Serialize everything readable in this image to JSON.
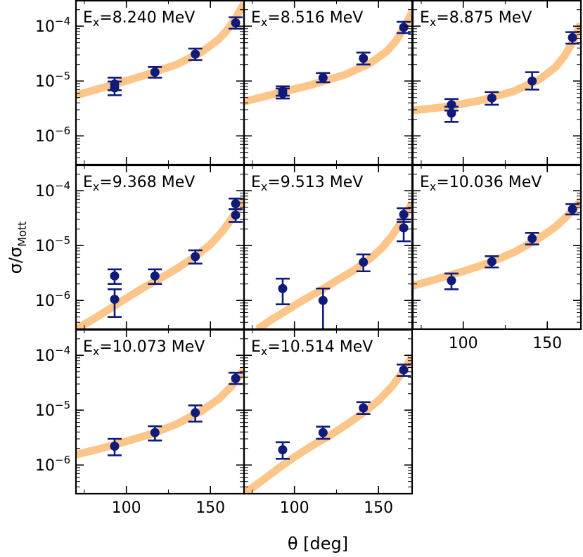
{
  "chart_data": {
    "type": "scatter",
    "xlabel": "θ [deg]",
    "ylabel": "σ/σ_Mott",
    "ylabel_main": "σ/σ",
    "ylabel_sub": "Mott",
    "xlim": [
      70,
      170
    ],
    "ylim": [
      3e-07,
      0.0003
    ],
    "yscale": "log",
    "xticks": [
      100,
      150
    ],
    "yticks": [
      1e-06,
      1e-05,
      0.0001
    ],
    "ytick_labels": [
      {
        "base": "10",
        "exp": "−6"
      },
      {
        "base": "10",
        "exp": "−5"
      },
      {
        "base": "10",
        "exp": "−4"
      }
    ],
    "panels": [
      {
        "label_base": "E",
        "label_sub": "x",
        "label_rest": "=8.240 MeV",
        "points": [
          {
            "x": 93,
            "y": 7.5e-06,
            "ylo": 5.5e-06,
            "yhi": 9.8e-06
          },
          {
            "x": 93,
            "y": 8.8e-06,
            "ylo": 6.8e-06,
            "yhi": 1.15e-05
          },
          {
            "x": 117,
            "y": 1.45e-05,
            "ylo": 1.15e-05,
            "yhi": 1.8e-05
          },
          {
            "x": 141,
            "y": 3.1e-05,
            "ylo": 2.4e-05,
            "yhi": 3.9e-05
          },
          {
            "x": 165,
            "y": 0.000115,
            "ylo": 9e-05,
            "yhi": 0.000145
          }
        ],
        "curve": [
          [
            70,
            5.5e-06
          ],
          [
            90,
            8.2e-06
          ],
          [
            110,
            1.25e-05
          ],
          [
            130,
            2e-05
          ],
          [
            145,
            3.4e-05
          ],
          [
            155,
            5.8e-05
          ],
          [
            160,
            8.5e-05
          ],
          [
            165,
            0.00014
          ],
          [
            170,
            0.00026
          ]
        ]
      },
      {
        "label_base": "E",
        "label_sub": "x",
        "label_rest": "=8.516 MeV",
        "points": [
          {
            "x": 93,
            "y": 5.9e-06,
            "ylo": 4.8e-06,
            "yhi": 7.3e-06
          },
          {
            "x": 93,
            "y": 6.6e-06,
            "ylo": 5.4e-06,
            "yhi": 8e-06
          },
          {
            "x": 117,
            "y": 1.15e-05,
            "ylo": 9.5e-06,
            "yhi": 1.4e-05
          },
          {
            "x": 141,
            "y": 2.6e-05,
            "ylo": 2e-05,
            "yhi": 3.3e-05
          },
          {
            "x": 165,
            "y": 9.5e-05,
            "ylo": 7.5e-05,
            "yhi": 0.00012
          }
        ],
        "curve": [
          [
            70,
            4.2e-06
          ],
          [
            90,
            6e-06
          ],
          [
            110,
            8.5e-06
          ],
          [
            130,
            1.3e-05
          ],
          [
            145,
            2.1e-05
          ],
          [
            155,
            3.5e-05
          ],
          [
            160,
            5.2e-05
          ],
          [
            165,
            9e-05
          ],
          [
            170,
            0.00018
          ]
        ]
      },
      {
        "label_base": "E",
        "label_sub": "x",
        "label_rest": "=8.875 MeV",
        "points": [
          {
            "x": 93,
            "y": 2.6e-06,
            "ylo": 1.8e-06,
            "yhi": 3.4e-06
          },
          {
            "x": 93,
            "y": 3.7e-06,
            "ylo": 2.9e-06,
            "yhi": 4.7e-06
          },
          {
            "x": 117,
            "y": 4.9e-06,
            "ylo": 3.7e-06,
            "yhi": 6.3e-06
          },
          {
            "x": 141,
            "y": 1e-05,
            "ylo": 7e-06,
            "yhi": 1.45e-05
          },
          {
            "x": 165,
            "y": 6.2e-05,
            "ylo": 4.8e-05,
            "yhi": 7.8e-05
          }
        ],
        "curve": [
          [
            70,
            2.9e-06
          ],
          [
            90,
            3.4e-06
          ],
          [
            110,
            4.4e-06
          ],
          [
            130,
            6.5e-06
          ],
          [
            145,
            1.05e-05
          ],
          [
            155,
            1.8e-05
          ],
          [
            160,
            2.8e-05
          ],
          [
            165,
            5e-05
          ],
          [
            170,
            0.00011
          ]
        ]
      },
      {
        "label_base": "E",
        "label_sub": "x",
        "label_rest": "=9.368 MeV",
        "points": [
          {
            "x": 93,
            "y": 2.8e-06,
            "ylo": 2e-06,
            "yhi": 3.7e-06
          },
          {
            "x": 93,
            "y": 1.05e-06,
            "ylo": 5e-07,
            "yhi": 1.6e-06
          },
          {
            "x": 117,
            "y": 2.8e-06,
            "ylo": 2e-06,
            "yhi": 3.7e-06
          },
          {
            "x": 141,
            "y": 6.3e-06,
            "ylo": 4.7e-06,
            "yhi": 8.2e-06
          },
          {
            "x": 165,
            "y": 3.6e-05,
            "ylo": 2.7e-05,
            "yhi": 4.6e-05
          },
          {
            "x": 165,
            "y": 5.8e-05,
            "ylo": 4.6e-05,
            "yhi": 7.2e-05
          }
        ],
        "curve": [
          [
            70,
            3e-07
          ],
          [
            80,
            4.5e-07
          ],
          [
            90,
            7e-07
          ],
          [
            100,
            1.1e-06
          ],
          [
            110,
            1.7e-06
          ],
          [
            120,
            2.5e-06
          ],
          [
            130,
            3.8e-06
          ],
          [
            140,
            6e-06
          ],
          [
            150,
            1.05e-05
          ],
          [
            157,
            1.8e-05
          ],
          [
            163,
            3.2e-05
          ],
          [
            170,
            7e-05
          ]
        ]
      },
      {
        "label_base": "E",
        "label_sub": "x",
        "label_rest": "=9.513 MeV",
        "points": [
          {
            "x": 93,
            "y": 1.65e-06,
            "ylo": 8.5e-07,
            "yhi": 2.5e-06
          },
          {
            "x": 117,
            "y": 1e-06,
            "ylo": 2.5e-07,
            "yhi": 1.65e-06
          },
          {
            "x": 141,
            "y": 5e-06,
            "ylo": 3.4e-06,
            "yhi": 6.9e-06
          },
          {
            "x": 165,
            "y": 2.1e-05,
            "ylo": 1.2e-05,
            "yhi": 3e-05
          },
          {
            "x": 165,
            "y": 3.7e-05,
            "ylo": 2.7e-05,
            "yhi": 4.8e-05
          }
        ],
        "curve": [
          [
            78,
            3e-07
          ],
          [
            85,
            4.2e-07
          ],
          [
            95,
            6.5e-07
          ],
          [
            105,
            1e-06
          ],
          [
            115,
            1.5e-06
          ],
          [
            125,
            2.3e-06
          ],
          [
            135,
            3.5e-06
          ],
          [
            145,
            5.8e-06
          ],
          [
            152,
            9e-06
          ],
          [
            158,
            1.5e-05
          ],
          [
            164,
            2.8e-05
          ],
          [
            170,
            6e-05
          ]
        ]
      },
      {
        "label_base": "E",
        "label_sub": "x",
        "label_rest": "=10.036 MeV",
        "points": [
          {
            "x": 93,
            "y": 2.3e-06,
            "ylo": 1.6e-06,
            "yhi": 3.1e-06
          },
          {
            "x": 117,
            "y": 5.1e-06,
            "ylo": 4e-06,
            "yhi": 6.4e-06
          },
          {
            "x": 141,
            "y": 1.35e-05,
            "ylo": 1.05e-05,
            "yhi": 1.7e-05
          },
          {
            "x": 165,
            "y": 4.6e-05,
            "ylo": 3.7e-05,
            "yhi": 5.7e-05
          }
        ],
        "curve": [
          [
            70,
            1.85e-06
          ],
          [
            85,
            2.5e-06
          ],
          [
            100,
            3.4e-06
          ],
          [
            115,
            4.8e-06
          ],
          [
            130,
            7.5e-06
          ],
          [
            145,
            1.35e-05
          ],
          [
            155,
            2.2e-05
          ],
          [
            162,
            3.5e-05
          ],
          [
            170,
            6.5e-05
          ]
        ]
      },
      {
        "label_base": "E",
        "label_sub": "x",
        "label_rest": "=10.073 MeV",
        "points": [
          {
            "x": 93,
            "y": 2.2e-06,
            "ylo": 1.5e-06,
            "yhi": 3e-06
          },
          {
            "x": 117,
            "y": 3.9e-06,
            "ylo": 2.8e-06,
            "yhi": 5.1e-06
          },
          {
            "x": 141,
            "y": 9e-06,
            "ylo": 6.2e-06,
            "yhi": 1.22e-05
          },
          {
            "x": 165,
            "y": 3.8e-05,
            "ylo": 3e-05,
            "yhi": 4.8e-05
          }
        ],
        "curve": [
          [
            70,
            1.55e-06
          ],
          [
            85,
            2e-06
          ],
          [
            100,
            2.7e-06
          ],
          [
            115,
            3.7e-06
          ],
          [
            130,
            5.6e-06
          ],
          [
            145,
            9.8e-06
          ],
          [
            155,
            1.6e-05
          ],
          [
            162,
            2.6e-05
          ],
          [
            170,
            5.5e-05
          ]
        ]
      },
      {
        "label_base": "E",
        "label_sub": "x",
        "label_rest": "=10.514 MeV",
        "points": [
          {
            "x": 93,
            "y": 1.9e-06,
            "ylo": 1.3e-06,
            "yhi": 2.6e-06
          },
          {
            "x": 117,
            "y": 3.9e-06,
            "ylo": 3e-06,
            "yhi": 5e-06
          },
          {
            "x": 141,
            "y": 1.1e-05,
            "ylo": 8.5e-06,
            "yhi": 1.4e-05
          },
          {
            "x": 165,
            "y": 5.4e-05,
            "ylo": 4.2e-05,
            "yhi": 6.8e-05
          }
        ],
        "curve": [
          [
            70,
            3e-07
          ],
          [
            80,
            5e-07
          ],
          [
            90,
            8.5e-07
          ],
          [
            100,
            1.4e-06
          ],
          [
            110,
            2.2e-06
          ],
          [
            120,
            3.3e-06
          ],
          [
            130,
            5.2e-06
          ],
          [
            140,
            8.5e-06
          ],
          [
            150,
            1.5e-05
          ],
          [
            158,
            2.7e-05
          ],
          [
            164,
            4.8e-05
          ],
          [
            170,
            9.5e-05
          ]
        ]
      }
    ]
  }
}
